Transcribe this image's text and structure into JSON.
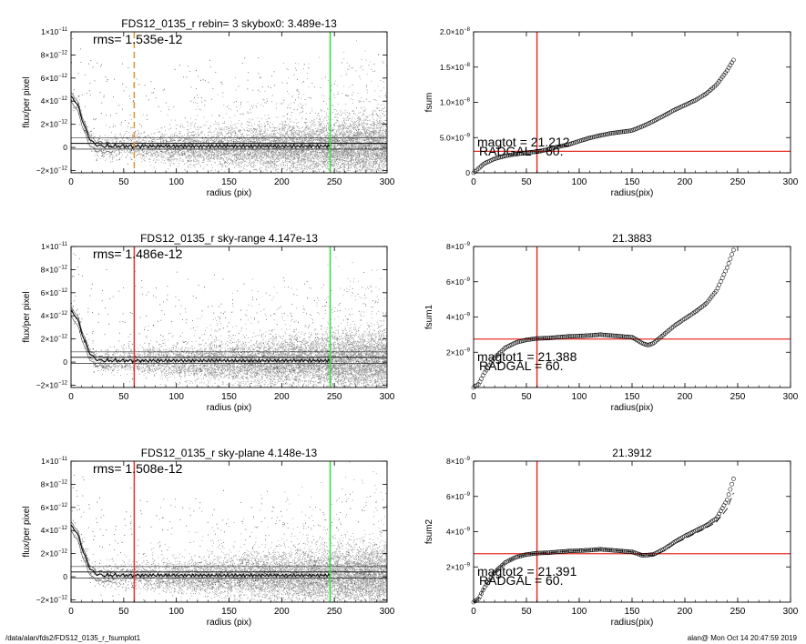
{
  "colors": {
    "scatter": "#9a9a9a",
    "scatter_dark": "#333333",
    "red": "#e8302a",
    "green": "#33dd33",
    "orange": "#e0902a",
    "axis": "#000000"
  },
  "footer": {
    "left": "/data/alan/fds2/FDS12_0135_r_fsumplot1",
    "right": "alan@  Mon Oct 14 20:47:59 2019"
  },
  "chart_data": [
    {
      "id": "profile-skybox",
      "type": "scatter",
      "title": "FDS12_0135_r rebin= 3    skybox0:  3.489e-13",
      "annotation": "rms= 1.535e-12",
      "xlabel": "radius (pix)",
      "ylabel": "flux/per pixel",
      "xlim": [
        0,
        300
      ],
      "ylim": [
        -2.2e-12,
        1e-11
      ],
      "xticks": [
        "0",
        "50",
        "100",
        "150",
        "200",
        "250",
        "300"
      ],
      "yticks": [
        {
          "v": -2e-12,
          "m": "−2×10",
          "e": "−12"
        },
        {
          "v": 0,
          "m": "0",
          "e": ""
        },
        {
          "v": 2e-12,
          "m": "2×10",
          "e": "−12"
        },
        {
          "v": 4e-12,
          "m": "4×10",
          "e": "−12"
        },
        {
          "v": 6e-12,
          "m": "6×10",
          "e": "−12"
        },
        {
          "v": 8e-12,
          "m": "8×10",
          "e": "−12"
        },
        {
          "v": 1e-11,
          "m": "1×10",
          "e": "−11"
        }
      ],
      "sky_lines": [
        3.489e-13,
        -1.5e-13,
        8.5e-13
      ],
      "vlines": [
        {
          "x": 60,
          "color": "orange",
          "style": "dashed"
        },
        {
          "x": 246,
          "color": "green",
          "style": "solid"
        }
      ]
    },
    {
      "id": "fsum",
      "type": "line",
      "title": "",
      "xlabel": "radius(pix)",
      "ylabel": "fsum",
      "xlim": [
        0,
        300
      ],
      "ylim": [
        0,
        2e-08
      ],
      "xticks": [
        "0",
        "50",
        "100",
        "150",
        "200",
        "250",
        "300"
      ],
      "yticks": [
        {
          "v": 0,
          "m": "0",
          "e": ""
        },
        {
          "v": 5e-09,
          "m": "5.0×10",
          "e": "−9"
        },
        {
          "v": 1e-08,
          "m": "1.0×10",
          "e": "−8"
        },
        {
          "v": 1.5e-08,
          "m": "1.5×10",
          "e": "−8"
        },
        {
          "v": 2e-08,
          "m": "2.0×10",
          "e": "−8"
        }
      ],
      "x": [
        0,
        10,
        20,
        30,
        40,
        50,
        60,
        70,
        80,
        90,
        100,
        110,
        120,
        130,
        140,
        150,
        160,
        170,
        180,
        190,
        200,
        210,
        220,
        230,
        240,
        246
      ],
      "y": [
        0,
        1.3e-09,
        2e-09,
        2.4e-09,
        2.65e-09,
        2.85e-09,
        3e-09,
        3.3e-09,
        3.7e-09,
        4e-09,
        4.5e-09,
        4.95e-09,
        5.3e-09,
        5.6e-09,
        5.8e-09,
        6e-09,
        6.6e-09,
        7.3e-09,
        8.1e-09,
        8.9e-09,
        9.6e-09,
        1.03e-08,
        1.12e-08,
        1.25e-08,
        1.45e-08,
        1.6e-08
      ],
      "vline": 60,
      "hline": 3.05e-09,
      "labels": [
        "magtot =  21.212",
        "RADGAL =    60."
      ]
    },
    {
      "id": "profile-skyrange",
      "type": "scatter",
      "title": "FDS12_0135_r sky-range  4.147e-13",
      "annotation": "rms= 1.486e-12",
      "xlabel": "radius (pix)",
      "ylabel": "flux/per pixel",
      "xlim": [
        0,
        300
      ],
      "ylim": [
        -2.2e-12,
        1e-11
      ],
      "xticks": [
        "0",
        "50",
        "100",
        "150",
        "200",
        "250",
        "300"
      ],
      "yticks": [
        {
          "v": -2e-12,
          "m": "−2×10",
          "e": "−12"
        },
        {
          "v": 0,
          "m": "0",
          "e": ""
        },
        {
          "v": 2e-12,
          "m": "2×10",
          "e": "−12"
        },
        {
          "v": 4e-12,
          "m": "4×10",
          "e": "−12"
        },
        {
          "v": 6e-12,
          "m": "6×10",
          "e": "−12"
        },
        {
          "v": 8e-12,
          "m": "8×10",
          "e": "−12"
        },
        {
          "v": 1e-11,
          "m": "1×10",
          "e": "−11"
        }
      ],
      "sky_lines": [
        4.147e-13,
        -1.3e-13,
        8.8e-13
      ],
      "vlines": [
        {
          "x": 60,
          "color": "red",
          "style": "solid"
        },
        {
          "x": 246,
          "color": "green",
          "style": "solid"
        }
      ]
    },
    {
      "id": "fsum1",
      "type": "line",
      "title": "21.3883",
      "xlabel": "radius(pix)",
      "ylabel": "fsum1",
      "xlim": [
        0,
        300
      ],
      "ylim": [
        0,
        8e-09
      ],
      "xticks": [
        "0",
        "50",
        "100",
        "150",
        "200",
        "250",
        "300"
      ],
      "yticks": [
        {
          "v": 2e-09,
          "m": "2×10",
          "e": "−9"
        },
        {
          "v": 4e-09,
          "m": "4×10",
          "e": "−9"
        },
        {
          "v": 6e-09,
          "m": "6×10",
          "e": "−9"
        },
        {
          "v": 8e-09,
          "m": "8×10",
          "e": "−9"
        }
      ],
      "x": [
        0,
        5,
        10,
        20,
        30,
        40,
        50,
        60,
        70,
        80,
        90,
        100,
        110,
        120,
        130,
        140,
        150,
        160,
        165,
        170,
        180,
        190,
        200,
        210,
        220,
        230,
        240,
        246
      ],
      "y": [
        0,
        2e-10,
        8e-10,
        1.7e-09,
        2.25e-09,
        2.55e-09,
        2.7e-09,
        2.78e-09,
        2.8e-09,
        2.85e-09,
        2.9e-09,
        2.92e-09,
        2.95e-09,
        3e-09,
        2.95e-09,
        2.9e-09,
        2.85e-09,
        2.5e-09,
        2.4e-09,
        2.5e-09,
        3e-09,
        3.5e-09,
        3.9e-09,
        4.3e-09,
        4.75e-09,
        5.5e-09,
        6.8e-09,
        7.8e-09
      ],
      "vline": 60,
      "hline": 2.75e-09,
      "labels": [
        "magtot1 =  21.388",
        "RADGAL =    60."
      ]
    },
    {
      "id": "profile-skyplane",
      "type": "scatter",
      "title": "FDS12_0135_r sky-plane  4.148e-13",
      "annotation": "rms= 1.508e-12",
      "xlabel": "radius (pix)",
      "ylabel": "flux/per pixel",
      "xlim": [
        0,
        300
      ],
      "ylim": [
        -2.2e-12,
        1e-11
      ],
      "xticks": [
        "0",
        "50",
        "100",
        "150",
        "200",
        "250",
        "300"
      ],
      "yticks": [
        {
          "v": -2e-12,
          "m": "−2×10",
          "e": "−12"
        },
        {
          "v": 0,
          "m": "0",
          "e": ""
        },
        {
          "v": 2e-12,
          "m": "2×10",
          "e": "−12"
        },
        {
          "v": 4e-12,
          "m": "4×10",
          "e": "−12"
        },
        {
          "v": 6e-12,
          "m": "6×10",
          "e": "−12"
        },
        {
          "v": 8e-12,
          "m": "8×10",
          "e": "−12"
        },
        {
          "v": 1e-11,
          "m": "1×10",
          "e": "−11"
        }
      ],
      "sky_lines": [
        4.148e-13,
        -1.3e-13,
        8.8e-13
      ],
      "vlines": [
        {
          "x": 60,
          "color": "red",
          "style": "solid"
        },
        {
          "x": 246,
          "color": "green",
          "style": "solid"
        }
      ]
    },
    {
      "id": "fsum2",
      "type": "line",
      "title": "21.3912",
      "xlabel": "radius(pix)",
      "ylabel": "fsum2",
      "xlim": [
        0,
        300
      ],
      "ylim": [
        0,
        8e-09
      ],
      "xticks": [
        "0",
        "50",
        "100",
        "150",
        "200",
        "250",
        "300"
      ],
      "yticks": [
        {
          "v": 2e-09,
          "m": "2×10",
          "e": "−9"
        },
        {
          "v": 4e-09,
          "m": "4×10",
          "e": "−9"
        },
        {
          "v": 6e-09,
          "m": "6×10",
          "e": "−9"
        },
        {
          "v": 8e-09,
          "m": "8×10",
          "e": "−9"
        }
      ],
      "x": [
        0,
        5,
        10,
        20,
        30,
        40,
        50,
        60,
        70,
        80,
        90,
        100,
        110,
        120,
        130,
        140,
        150,
        160,
        170,
        180,
        190,
        200,
        210,
        220,
        230,
        240,
        246
      ],
      "y": [
        0,
        2e-10,
        8e-10,
        1.7e-09,
        2.25e-09,
        2.55e-09,
        2.7e-09,
        2.78e-09,
        2.8e-09,
        2.85e-09,
        2.9e-09,
        2.92e-09,
        2.95e-09,
        3e-09,
        2.95e-09,
        2.9e-09,
        2.85e-09,
        2.65e-09,
        2.7e-09,
        3e-09,
        3.4e-09,
        3.75e-09,
        4.05e-09,
        4.35e-09,
        4.75e-09,
        5.8e-09,
        7e-09
      ],
      "y2": [
        0,
        2e-10,
        8e-10,
        1.7e-09,
        2.25e-09,
        2.55e-09,
        2.7e-09,
        2.78e-09,
        2.8e-09,
        2.85e-09,
        2.9e-09,
        2.92e-09,
        2.95e-09,
        3e-09,
        2.95e-09,
        2.9e-09,
        2.85e-09,
        2.65e-09,
        2.65e-09,
        2.9e-09,
        3.3e-09,
        3.6e-09,
        3.9e-09,
        4.2e-09,
        4.55e-09,
        5.3e-09,
        6.2e-09
      ],
      "vline": 60,
      "hline": 2.75e-09,
      "labels": [
        "magtot2 =  21.391",
        "RADGAL =    60."
      ]
    }
  ]
}
